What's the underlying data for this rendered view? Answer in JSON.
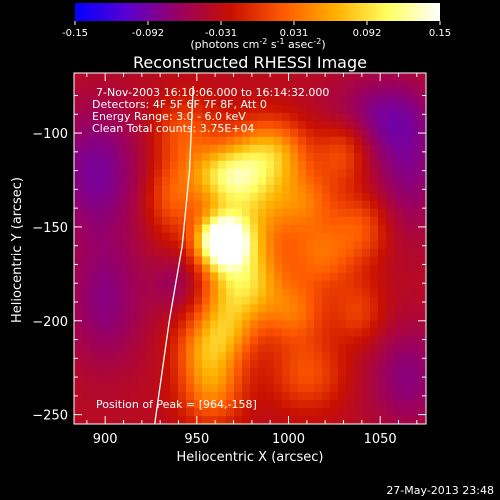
{
  "chart_data": {
    "type": "heatmap",
    "title": "Reconstructed RHESSI Image",
    "xlabel": "Heliocentric X (arcsec)",
    "ylabel": "Heliocentric Y (arcsec)",
    "xlim": [
      883,
      1075
    ],
    "ylim": [
      -255,
      -68
    ],
    "x_ticks": [
      900,
      950,
      1000,
      1050
    ],
    "y_ticks": [
      -100,
      -150,
      -200,
      -250
    ],
    "colorbar": {
      "range": [
        -0.15,
        0.15
      ],
      "ticks": [
        "-0.15",
        "-0.092",
        "-0.031",
        "0.031",
        "0.092",
        "0.15"
      ],
      "unit_label": {
        "prefix": "(photons cm",
        "sup1": "-2",
        "mid1": " s",
        "sup2": "-1",
        "mid2": " asec",
        "sup3": "-2",
        "suffix": ")"
      },
      "colors": [
        "#0000ff",
        "#5a00d0",
        "#9a0060",
        "#c81000",
        "#ff5a00",
        "#ffb000",
        "#ffff60",
        "#ffffff"
      ]
    },
    "annotations": [
      "7-Nov-2003 16:10:06.000 to 16:14:32.000",
      "Detectors: 4F 5F 6F 7F 8F, Att 0",
      "Energy Range: 3.0 - 6.0 keV",
      "Clean    Total counts: 3.75E+04"
    ],
    "peak_label": "Position of Peak = [964,-158]",
    "peak": {
      "x": 964,
      "y": -158
    },
    "sources": [
      {
        "x": 964,
        "y": -158,
        "amp": 0.2,
        "sx": 9,
        "sy": 9
      },
      {
        "x": 975,
        "y": -140,
        "amp": 0.1,
        "sx": 16,
        "sy": 24
      },
      {
        "x": 966,
        "y": -122,
        "amp": 0.08,
        "sx": 15,
        "sy": 10
      },
      {
        "x": 992,
        "y": -110,
        "amp": 0.08,
        "sx": 14,
        "sy": 12
      },
      {
        "x": 975,
        "y": -180,
        "amp": 0.1,
        "sx": 14,
        "sy": 14
      },
      {
        "x": 965,
        "y": -205,
        "amp": 0.08,
        "sx": 12,
        "sy": 13
      },
      {
        "x": 958,
        "y": -235,
        "amp": 0.08,
        "sx": 12,
        "sy": 14
      },
      {
        "x": 943,
        "y": -100,
        "amp": 0.05,
        "sx": 12,
        "sy": 13
      },
      {
        "x": 936,
        "y": -135,
        "amp": 0.05,
        "sx": 10,
        "sy": 14
      },
      {
        "x": 1008,
        "y": -136,
        "amp": 0.06,
        "sx": 13,
        "sy": 12
      },
      {
        "x": 1018,
        "y": -165,
        "amp": 0.06,
        "sx": 13,
        "sy": 13
      },
      {
        "x": 1003,
        "y": -195,
        "amp": 0.06,
        "sx": 12,
        "sy": 12
      },
      {
        "x": 1010,
        "y": -228,
        "amp": 0.05,
        "sx": 14,
        "sy": 14
      },
      {
        "x": 1030,
        "y": -110,
        "amp": 0.05,
        "sx": 10,
        "sy": 12
      },
      {
        "x": 1040,
        "y": -150,
        "amp": 0.05,
        "sx": 11,
        "sy": 13
      },
      {
        "x": 1038,
        "y": -195,
        "amp": 0.04,
        "sx": 10,
        "sy": 12
      },
      {
        "x": 952,
        "y": -215,
        "amp": 0.04,
        "sx": 11,
        "sy": 11
      },
      {
        "x": 895,
        "y": -120,
        "amp": -0.05,
        "sx": 18,
        "sy": 25
      },
      {
        "x": 900,
        "y": -190,
        "amp": -0.04,
        "sx": 15,
        "sy": 25
      },
      {
        "x": 1065,
        "y": -120,
        "amp": -0.04,
        "sx": 15,
        "sy": 25
      },
      {
        "x": 1065,
        "y": -230,
        "amp": -0.04,
        "sx": 15,
        "sy": 20
      },
      {
        "x": 940,
        "y": -180,
        "amp": -0.03,
        "sx": 10,
        "sy": 10
      },
      {
        "x": 1050,
        "y": -90,
        "amp": -0.04,
        "sx": 20,
        "sy": 15
      }
    ],
    "background": -0.035,
    "limb": [
      [
        948,
        -75
      ],
      [
        946,
        -120
      ],
      [
        942,
        -160
      ],
      [
        935,
        -200
      ],
      [
        927,
        -255
      ]
    ]
  },
  "timestamp": "27-May-2013 23:48"
}
